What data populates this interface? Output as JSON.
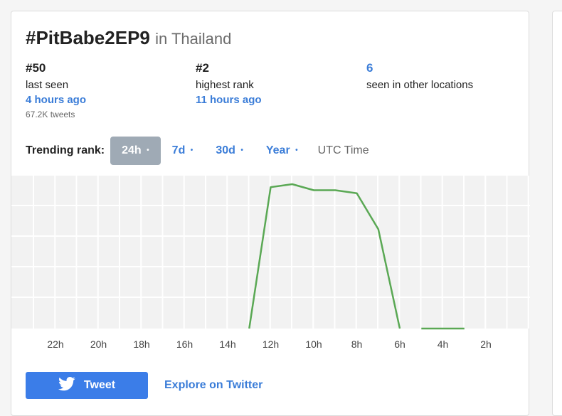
{
  "header": {
    "hashtag": "#PitBabe2EP9",
    "location": "in Thailand"
  },
  "stats": {
    "current": {
      "rank": "#50",
      "label": "last seen",
      "ago": "4 hours ago",
      "tweets": "67.2K tweets"
    },
    "highest": {
      "rank": "#2",
      "label": "highest rank",
      "ago": "11 hours ago"
    },
    "locations": {
      "count": "6",
      "label": "seen in other locations"
    }
  },
  "trending": {
    "label": "Trending rank:",
    "ranges": [
      {
        "label": "24h",
        "active": true
      },
      {
        "label": "7d",
        "active": false
      },
      {
        "label": "30d",
        "active": false
      },
      {
        "label": "Year",
        "active": false
      }
    ],
    "dot": "•",
    "utc": "UTC Time"
  },
  "chart_data": {
    "type": "line",
    "x_tick_labels": [
      "22h",
      "20h",
      "18h",
      "16h",
      "14h",
      "12h",
      "10h",
      "8h",
      "6h",
      "4h",
      "2h"
    ],
    "x_direction": "hours ago, decreasing left to right",
    "y_direction": "rank, best (lowest number) at top",
    "grid": true,
    "series_color": "#5aa854",
    "segments": [
      [
        {
          "hours_ago": 13,
          "rank": 50
        },
        {
          "hours_ago": 12,
          "rank": 3
        },
        {
          "hours_ago": 11,
          "rank": 2
        },
        {
          "hours_ago": 10,
          "rank": 4
        },
        {
          "hours_ago": 9,
          "rank": 4
        },
        {
          "hours_ago": 8,
          "rank": 5
        },
        {
          "hours_ago": 7,
          "rank": 17
        },
        {
          "hours_ago": 6,
          "rank": 50
        }
      ],
      [
        {
          "hours_ago": 5,
          "rank": 50
        },
        {
          "hours_ago": 4,
          "rank": 50
        },
        {
          "hours_ago": 3,
          "rank": 50
        }
      ]
    ]
  },
  "actions": {
    "tweet": "Tweet",
    "explore": "Explore on Twitter"
  },
  "colors": {
    "accent": "#3b7dd8",
    "active_pill": "#9faab5",
    "line": "#5aa854"
  }
}
